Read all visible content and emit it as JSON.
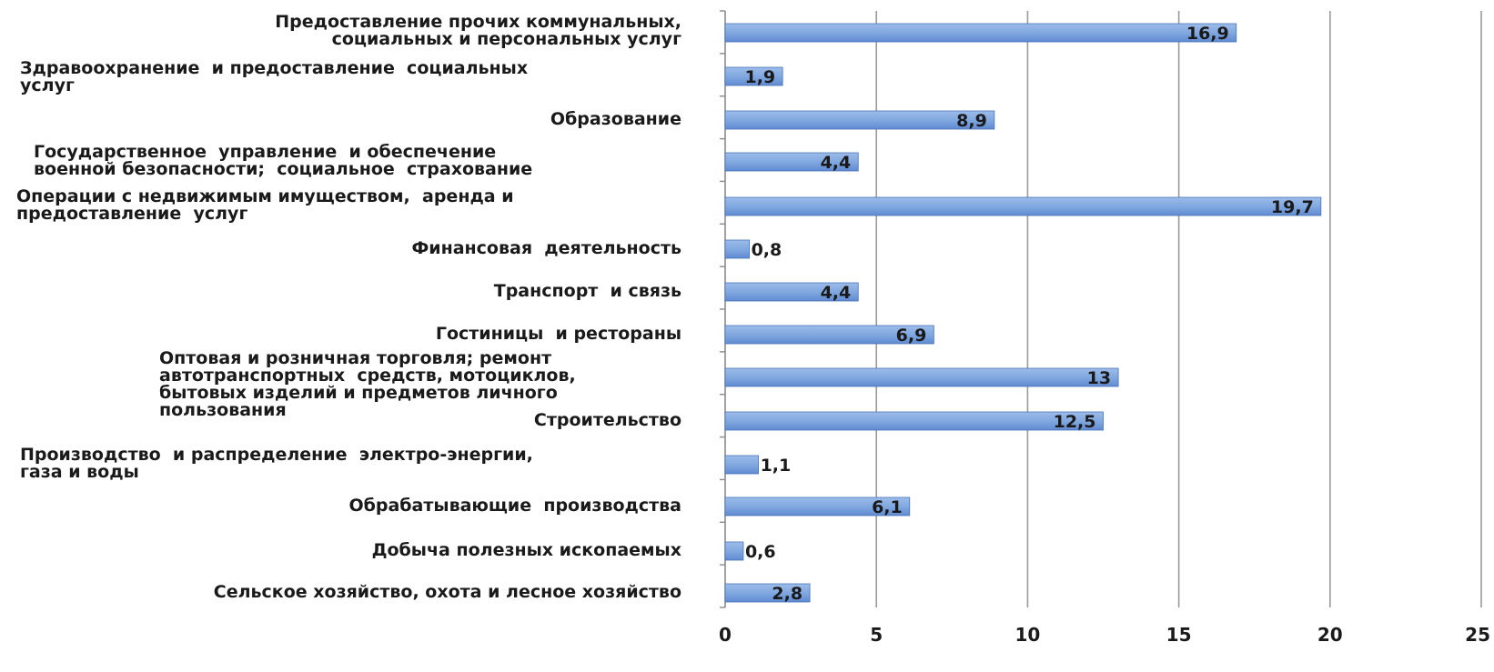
{
  "chart_data": {
    "type": "bar",
    "orientation": "horizontal",
    "xlim": [
      0,
      25
    ],
    "x_ticks": [
      "0",
      "5",
      "10",
      "15",
      "20",
      "25"
    ],
    "grid": "vertical",
    "bar_color": "#7ea6df",
    "categories": [
      "Предоставление прочих коммунальных,\nсоциальных и персональных услуг",
      "Здравоохранение  и предоставление  социальных\nуслуг",
      "Образование",
      "Государственное  управление  и обеспечение\nвоенной безопасности;  социальное  страхование",
      "Операции с недвижимым имуществом,  аренда и\nпредоставление  услуг",
      "Финансовая  деятельность",
      "Транспорт  и связь",
      "Гостиницы  и рестораны",
      "Оптовая и розничная торговля; ремонт\nавтотранспортных  средств, мотоциклов,\nбытовых изделий и предметов личного\nпользования",
      "Строительство",
      "Производство  и распределение  электро-энергии,\nгаза и воды",
      "Обрабатывающие  производства",
      "Добыча полезных ископаемых",
      "Сельское хозяйство, охота и лесное хозяйство"
    ],
    "values": [
      16.9,
      1.9,
      8.9,
      4.4,
      19.7,
      0.8,
      4.4,
      6.9,
      13,
      12.5,
      1.1,
      6.1,
      0.6,
      2.8
    ],
    "value_labels": [
      "16,9",
      "1,9",
      "8,9",
      "4,4",
      "19,7",
      "0,8",
      "4,4",
      "6,9",
      "13",
      "12,5",
      "1,1",
      "6,1",
      "0,6",
      "2,8"
    ]
  }
}
